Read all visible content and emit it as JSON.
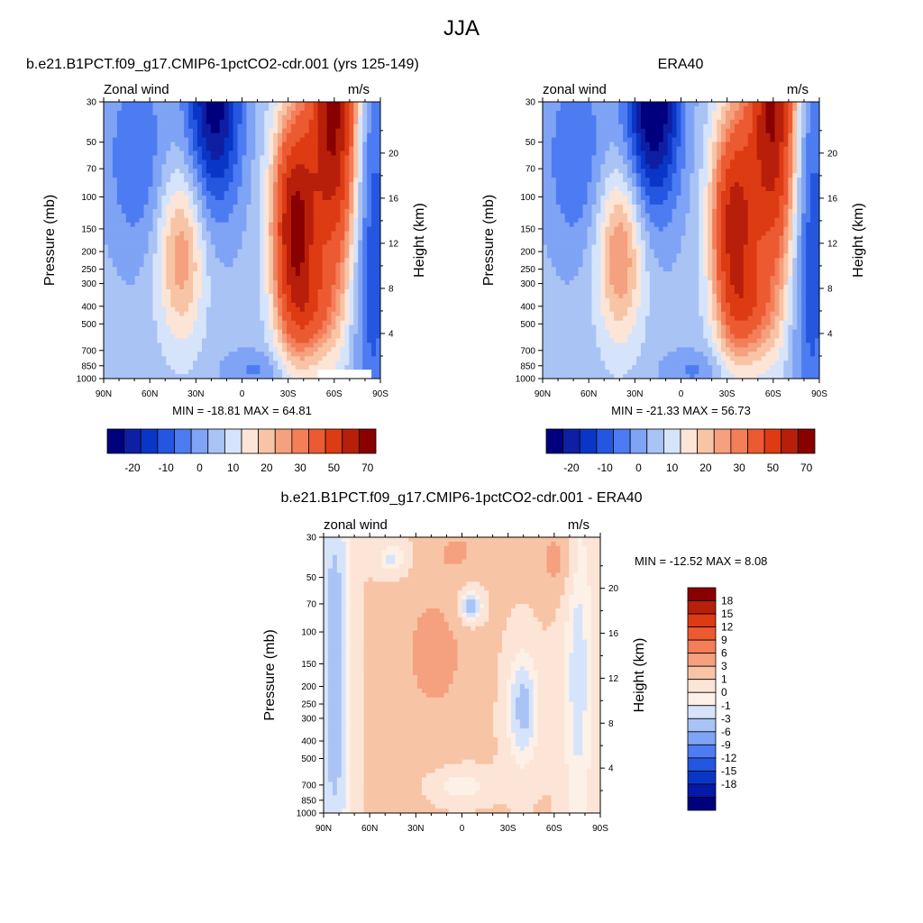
{
  "figure": {
    "title": "JJA"
  },
  "colors": {
    "cbar_top": [
      "#00007f",
      "#0e1fa3",
      "#0a36c7",
      "#2456e0",
      "#4d7cf2",
      "#7fa3f5",
      "#a9c3f5",
      "#d6e4fb",
      "#fce5d7",
      "#f8c4a6",
      "#f5a07e",
      "#f37e58",
      "#ec5a32",
      "#dd3b13",
      "#b81f0a",
      "#880000"
    ],
    "cbar_diff": [
      "#00007f",
      "#0618a8",
      "#0a36c7",
      "#2456e0",
      "#4d7cf2",
      "#7fa3f5",
      "#a9c3f5",
      "#d6e4fb",
      "#fdf0e6",
      "#fce5d7",
      "#f8c4a6",
      "#f5a07e",
      "#f37e58",
      "#ec5a32",
      "#dd3b13",
      "#b81f0a",
      "#880000"
    ]
  },
  "chart_data": [
    {
      "type": "heatmap",
      "panel": "model",
      "title": "b.e21.B1PCT.f09_g17.CMIP6-1pctCO2-cdr.001 (yrs 125-149)",
      "left_label": "Zonal wind",
      "right_label": "m/s",
      "ylabel": "Pressure (mb)",
      "ylabel_right": "Height (km)",
      "x_ticks": [
        "90N",
        "60N",
        "30N",
        "0",
        "30S",
        "60S",
        "90S"
      ],
      "y_ticks": [
        "30",
        "50",
        "70",
        "100",
        "150",
        "200",
        "250",
        "300",
        "400",
        "500",
        "700",
        "850",
        "1000"
      ],
      "height_ticks": [
        "20",
        "16",
        "12",
        "8",
        "4"
      ],
      "log_pressure_axis": true,
      "min_label": "MIN = -18.81",
      "max_label": "MAX =  64.81",
      "min": -18.81,
      "max": 64.81,
      "colorbar_labels": [
        "-20",
        "-10",
        "0",
        "10",
        "20",
        "30",
        "50",
        "70"
      ]
    },
    {
      "type": "heatmap",
      "panel": "reanalysis",
      "title": "ERA40",
      "left_label": "zonal wind",
      "right_label": "m/s",
      "ylabel": "Pressure (mb)",
      "ylabel_right": "Height (km)",
      "x_ticks": [
        "90N",
        "60N",
        "30N",
        "0",
        "30S",
        "60S",
        "90S"
      ],
      "y_ticks": [
        "30",
        "50",
        "70",
        "100",
        "150",
        "200",
        "250",
        "300",
        "400",
        "500",
        "700",
        "850",
        "1000"
      ],
      "height_ticks": [
        "20",
        "16",
        "12",
        "8",
        "4"
      ],
      "log_pressure_axis": true,
      "min_label": "MIN = -21.33",
      "max_label": "MAX =  56.73",
      "min": -21.33,
      "max": 56.73,
      "colorbar_labels": [
        "-20",
        "-10",
        "0",
        "10",
        "20",
        "30",
        "50",
        "70"
      ]
    },
    {
      "type": "heatmap",
      "panel": "difference",
      "title": "b.e21.B1PCT.f09_g17.CMIP6-1pctCO2-cdr.001 - ERA40",
      "left_label": "zonal wind",
      "right_label": "m/s",
      "ylabel": "Pressure (mb)",
      "ylabel_right": "Height (km)",
      "x_ticks": [
        "90N",
        "60N",
        "30N",
        "0",
        "30S",
        "60S",
        "90S"
      ],
      "y_ticks": [
        "30",
        "50",
        "70",
        "100",
        "150",
        "200",
        "250",
        "300",
        "400",
        "500",
        "700",
        "850",
        "1000"
      ],
      "height_ticks": [
        "20",
        "16",
        "12",
        "8",
        "4"
      ],
      "log_pressure_axis": true,
      "min_label": "MIN = -12.52",
      "max_label": "MAX =   8.08",
      "min": -12.52,
      "max": 8.08,
      "colorbar_labels": [
        "18",
        "15",
        "12",
        "9",
        "6",
        "3",
        "1",
        "0",
        "-1",
        "-3",
        "-6",
        "-9",
        "-12",
        "-15",
        "-18"
      ]
    }
  ]
}
